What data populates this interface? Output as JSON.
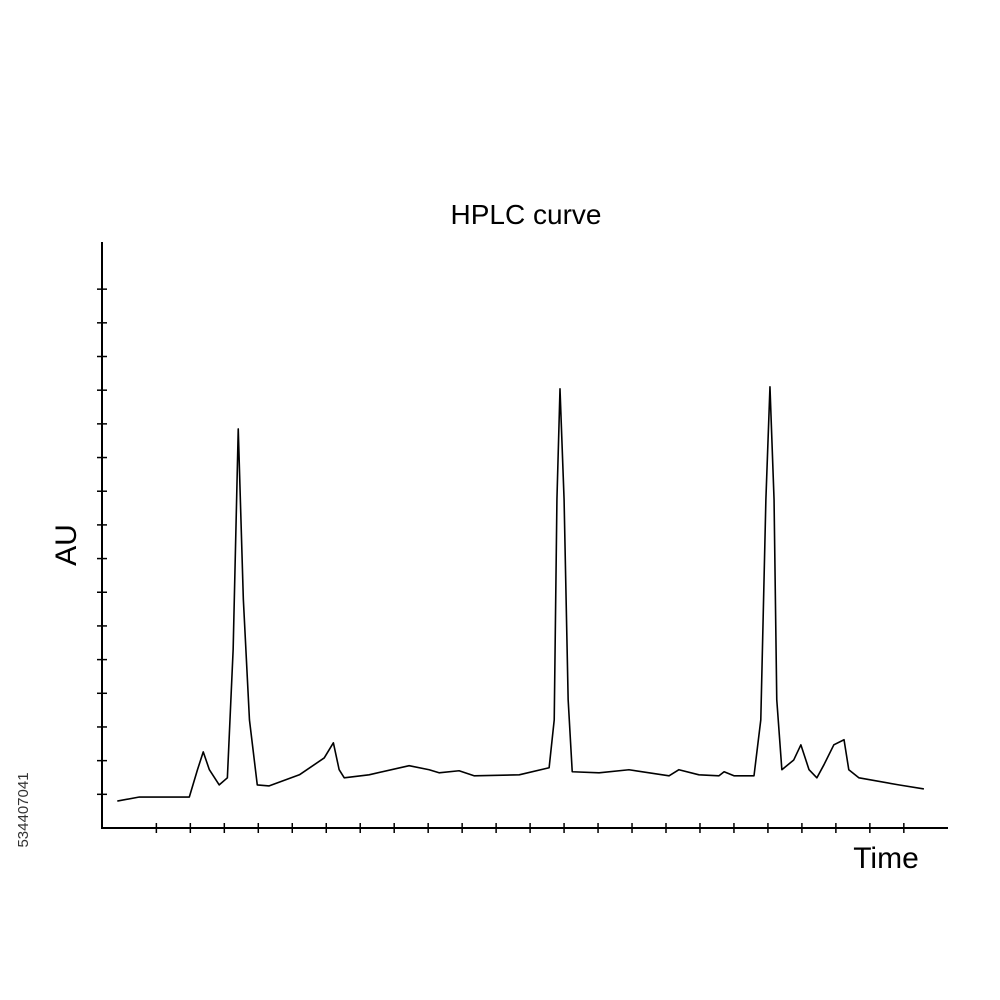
{
  "chart_data": {
    "type": "line",
    "title": "HPLC curve",
    "x_label": "Time",
    "y_label": "AU",
    "x": [
      0.85,
      1.5,
      2.97,
      3.21,
      3.38,
      3.56,
      3.85,
      4.09,
      4.26,
      4.41,
      4.56,
      4.74,
      4.97,
      5.32,
      6.21,
      6.94,
      7.21,
      7.38,
      7.53,
      8.26,
      9.44,
      10.03,
      10.32,
      10.91,
      11.35,
      12.68,
      13.56,
      13.71,
      13.79,
      13.88,
      14.0,
      14.12,
      14.24,
      15.03,
      15.91,
      17.09,
      17.38,
      17.97,
      18.56,
      18.71,
      19.0,
      19.59,
      19.79,
      19.94,
      20.06,
      20.18,
      20.26,
      20.41,
      20.76,
      20.97,
      21.21,
      21.44,
      21.65,
      21.94,
      22.24,
      22.38,
      22.68,
      23.85,
      24.59
    ],
    "series": [
      {
        "color": "#000000",
        "values": [
          0.8,
          0.92,
          0.92,
          1.73,
          2.26,
          1.73,
          1.28,
          1.49,
          5.3,
          11.85,
          6.79,
          3.21,
          1.28,
          1.25,
          1.58,
          2.08,
          2.53,
          1.73,
          1.49,
          1.58,
          1.85,
          1.73,
          1.64,
          1.7,
          1.55,
          1.58,
          1.79,
          3.21,
          9.76,
          13.04,
          9.76,
          3.81,
          1.67,
          1.64,
          1.73,
          1.55,
          1.73,
          1.58,
          1.55,
          1.67,
          1.55,
          1.55,
          3.21,
          9.76,
          13.1,
          9.76,
          3.81,
          1.73,
          2.02,
          2.47,
          1.73,
          1.49,
          1.88,
          2.47,
          2.62,
          1.73,
          1.49,
          1.28,
          1.16
        ]
      }
    ],
    "xlim": [
      0.4,
      25.3
    ],
    "ylim": [
      0,
      17.4
    ],
    "xticks": [
      2,
      3,
      4,
      5,
      6,
      7,
      8,
      9,
      10,
      11,
      12,
      13,
      14,
      15,
      16,
      17,
      18,
      19,
      20,
      21,
      22,
      23,
      24
    ],
    "yticks": [
      1,
      2,
      3,
      4,
      5,
      6,
      7,
      8,
      9,
      10,
      11,
      12,
      13,
      14,
      15,
      16
    ],
    "grid": false
  },
  "watermark": "534407041"
}
